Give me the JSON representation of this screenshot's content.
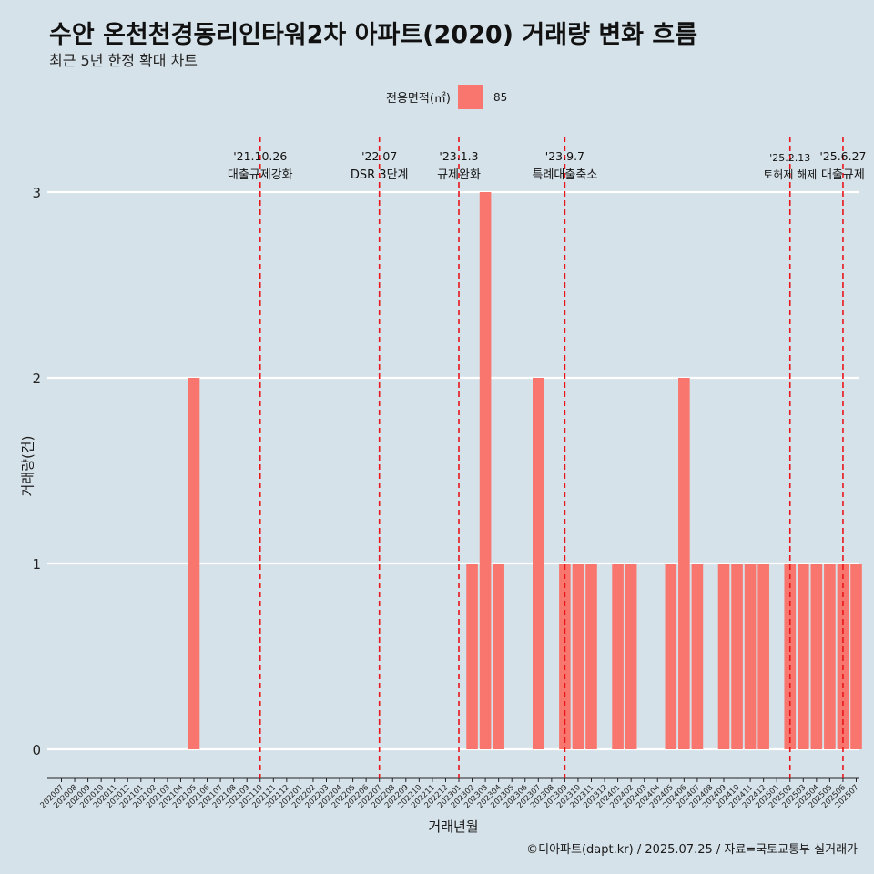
{
  "title": "수안 온천천경동리인타워2차 아파트(2020) 거래량 변화 흐름",
  "subtitle": "최근 5년 한정 확대 차트",
  "legend": {
    "title": "전용면적(㎡)",
    "item": "85",
    "color": "#f8766d"
  },
  "caption": "©디아파트(dapt.kr) / 2025.07.25 / 자료=국토교통부 실거래가",
  "chart_data": {
    "type": "bar",
    "xlabel": "거래년월",
    "ylabel": "거래량(건)",
    "ylim": [
      0,
      3
    ],
    "yticks": [
      0,
      1,
      2,
      3
    ],
    "grid": "horizontal",
    "categories": [
      "202007",
      "202008",
      "202009",
      "202010",
      "202011",
      "202012",
      "202101",
      "202102",
      "202103",
      "202104",
      "202105",
      "202106",
      "202107",
      "202108",
      "202109",
      "202110",
      "202111",
      "202112",
      "202201",
      "202202",
      "202203",
      "202204",
      "202205",
      "202206",
      "202207",
      "202208",
      "202209",
      "202210",
      "202211",
      "202212",
      "202301",
      "202302",
      "202303",
      "202304",
      "202305",
      "202306",
      "202307",
      "202308",
      "202309",
      "202310",
      "202311",
      "202312",
      "202401",
      "202402",
      "202403",
      "202404",
      "202405",
      "202406",
      "202407",
      "202408",
      "202409",
      "202410",
      "202411",
      "202412",
      "202501",
      "202502",
      "202503",
      "202504",
      "202505",
      "202506",
      "202507"
    ],
    "series": [
      {
        "name": "85",
        "color": "#f8766d",
        "values": [
          0,
          0,
          0,
          0,
          0,
          0,
          0,
          0,
          0,
          0,
          2,
          0,
          0,
          0,
          0,
          0,
          0,
          0,
          0,
          0,
          0,
          0,
          0,
          0,
          0,
          0,
          0,
          0,
          0,
          0,
          0,
          1,
          3,
          1,
          0,
          0,
          2,
          0,
          1,
          1,
          1,
          0,
          1,
          1,
          0,
          0,
          1,
          2,
          1,
          0,
          1,
          1,
          1,
          1,
          0,
          1,
          1,
          1,
          1,
          1,
          1
        ]
      }
    ],
    "events": [
      {
        "date": "'21.10.26",
        "label": "대출규제강화",
        "at": "202110"
      },
      {
        "date": "'22.07",
        "label": "DSR 3단계",
        "at": "202207"
      },
      {
        "date": "'23.1.3",
        "label": "규제완화",
        "at": "202301"
      },
      {
        "date": "'23.9.7",
        "label": "특례대출축소",
        "at": "202309"
      },
      {
        "date": "'25.2.13",
        "label": "토허제 해제",
        "at": "202502"
      },
      {
        "date": "'25.6.27",
        "label": "대출규제",
        "at": "202506"
      }
    ],
    "event_line_color": "#e8161b"
  }
}
